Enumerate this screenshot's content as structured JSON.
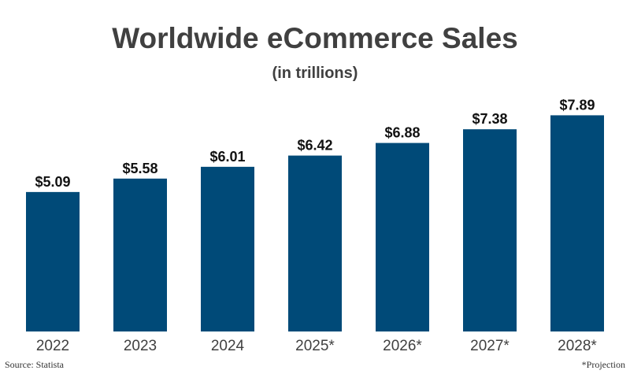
{
  "chart_data": {
    "type": "bar",
    "title": "Worldwide eCommerce Sales",
    "subtitle": "(in trillions)",
    "categories": [
      "2022",
      "2023",
      "2024",
      "2025*",
      "2026*",
      "2027*",
      "2028*"
    ],
    "values": [
      5.09,
      5.58,
      6.01,
      6.42,
      6.88,
      7.38,
      7.89
    ],
    "data_labels": [
      "$5.09",
      "$5.58",
      "$6.01",
      "$6.42",
      "$6.88",
      "$7.38",
      "$7.89"
    ],
    "xlabel": "",
    "ylabel": "",
    "ylim": [
      0,
      8.0
    ],
    "grid": false,
    "legend": "none",
    "bar_color": "#004a78",
    "source": "Source: Statista",
    "note": "*Projection"
  }
}
